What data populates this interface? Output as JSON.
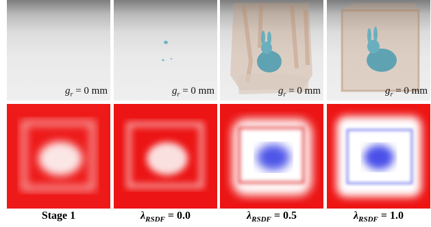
{
  "panels": [
    {
      "render_label": {
        "symbol": "g",
        "subscript": "r",
        "rest": "= 0 mm"
      },
      "caption": {
        "text": "Stage 1"
      }
    },
    {
      "render_label": {
        "symbol": "g",
        "subscript": "r",
        "rest": "= 0 mm"
      },
      "caption": {
        "symbol": "λ",
        "subscript": "RSDF",
        "rest": "= 0.0"
      }
    },
    {
      "render_label": {
        "symbol": "g",
        "subscript": "r",
        "rest": "= 0 mm"
      },
      "caption": {
        "symbol": "λ",
        "subscript": "RSDF",
        "rest": "= 0.5"
      }
    },
    {
      "render_label": {
        "symbol": "g",
        "subscript": "r",
        "rest": "= 0 mm"
      },
      "caption": {
        "symbol": "λ",
        "subscript": "RSDF",
        "rest": "= 1.0"
      }
    }
  ]
}
